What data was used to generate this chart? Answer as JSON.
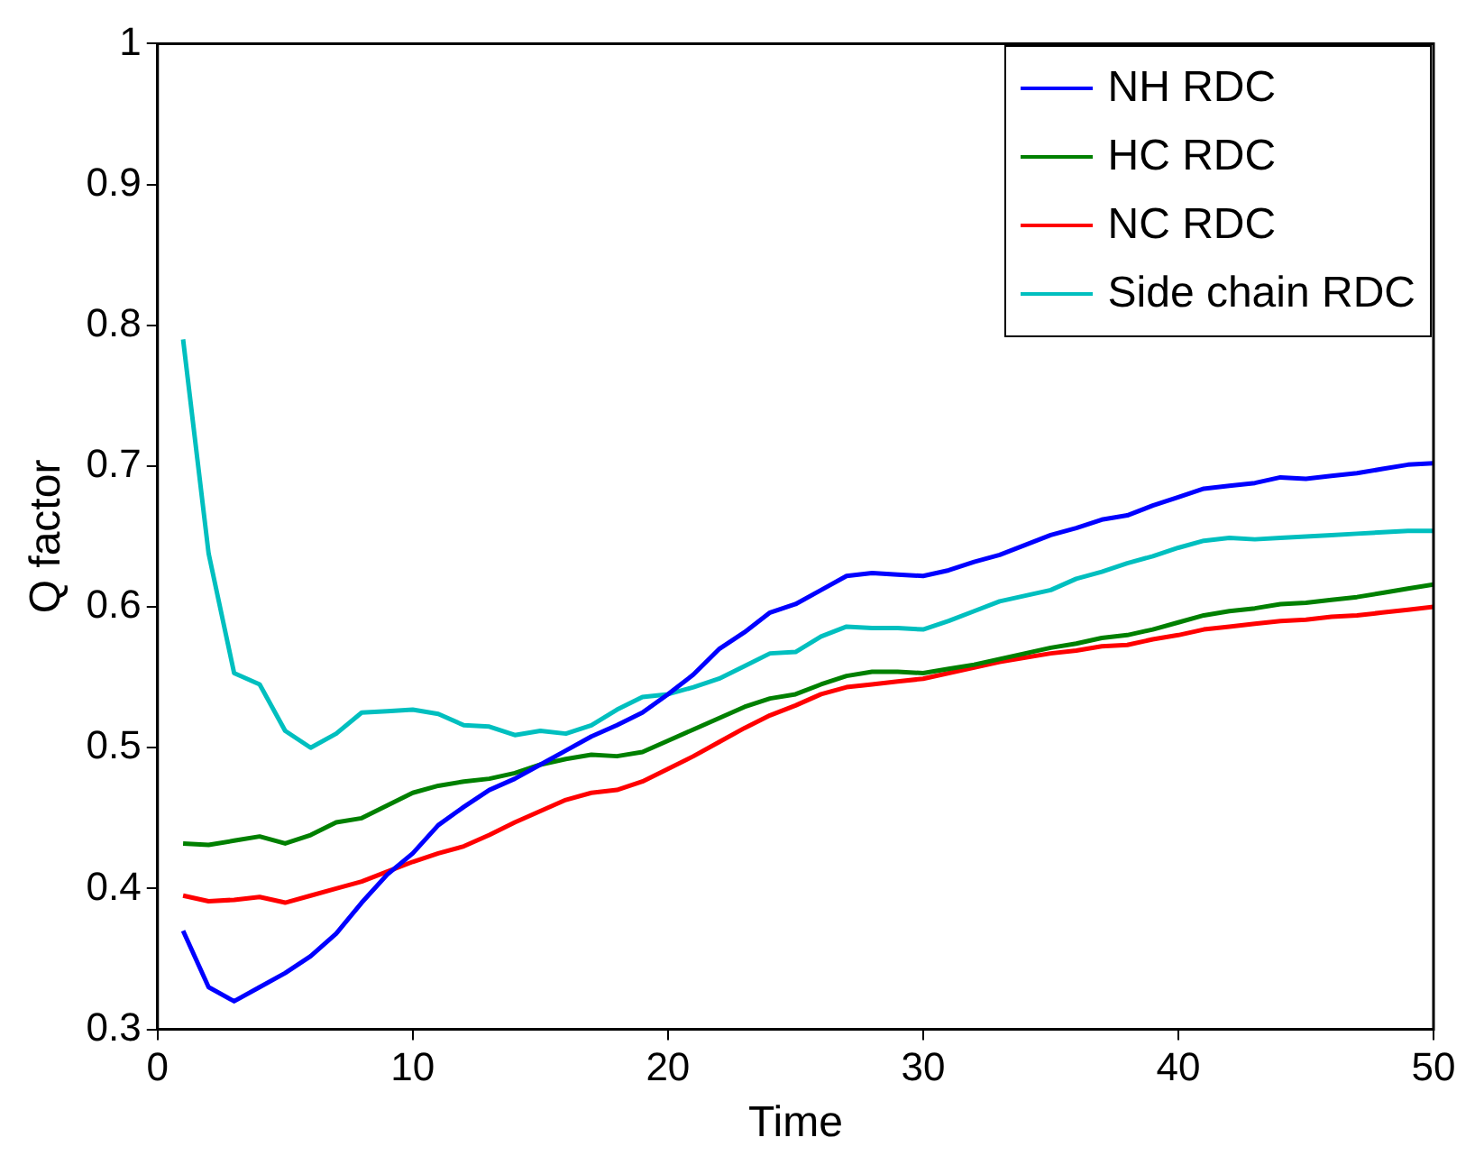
{
  "chart_data": {
    "type": "line",
    "xlabel": "Time",
    "ylabel": "Q factor",
    "x": [
      1,
      2,
      3,
      4,
      5,
      6,
      7,
      8,
      9,
      10,
      11,
      12,
      13,
      14,
      15,
      16,
      17,
      18,
      19,
      20,
      21,
      22,
      23,
      24,
      25,
      26,
      27,
      28,
      29,
      30,
      31,
      32,
      33,
      34,
      35,
      36,
      37,
      38,
      39,
      40,
      41,
      42,
      43,
      44,
      45,
      46,
      47,
      48,
      49,
      50
    ],
    "xlim": [
      0,
      50
    ],
    "xticks": [
      0,
      10,
      20,
      30,
      40,
      50
    ],
    "ylim": [
      0.3,
      1
    ],
    "yticks": [
      0.3,
      0.4,
      0.5,
      0.6,
      0.7,
      0.8,
      0.9,
      1
    ],
    "grid": false,
    "legend": "top right",
    "marker": "none",
    "line_style": "solid",
    "series": [
      {
        "name": "NH RDC",
        "color": "#0000ff",
        "values": [
          0.37,
          0.33,
          0.32,
          0.33,
          0.34,
          0.352,
          0.368,
          0.39,
          0.41,
          0.425,
          0.445,
          0.458,
          0.47,
          0.478,
          0.488,
          0.498,
          0.508,
          0.516,
          0.525,
          0.538,
          0.552,
          0.57,
          0.582,
          0.596,
          0.602,
          0.612,
          0.622,
          0.624,
          0.623,
          0.622,
          0.626,
          0.632,
          0.637,
          0.644,
          0.651,
          0.656,
          0.662,
          0.665,
          0.672,
          0.678,
          0.684,
          0.686,
          0.688,
          0.692,
          0.691,
          0.693,
          0.695,
          0.698,
          0.701,
          0.702
        ]
      },
      {
        "name": "HC RDC",
        "color": "#008000",
        "values": [
          0.432,
          0.431,
          0.434,
          0.437,
          0.432,
          0.438,
          0.447,
          0.45,
          0.459,
          0.468,
          0.473,
          0.476,
          0.478,
          0.482,
          0.488,
          0.492,
          0.495,
          0.494,
          0.497,
          0.505,
          0.513,
          0.521,
          0.529,
          0.535,
          0.538,
          0.545,
          0.551,
          0.554,
          0.554,
          0.553,
          0.556,
          0.559,
          0.563,
          0.567,
          0.571,
          0.574,
          0.578,
          0.58,
          0.584,
          0.589,
          0.594,
          0.597,
          0.599,
          0.602,
          0.603,
          0.605,
          0.607,
          0.61,
          0.613,
          0.616
        ]
      },
      {
        "name": "NC RDC",
        "color": "#ff0000",
        "values": [
          0.395,
          0.391,
          0.392,
          0.394,
          0.39,
          0.395,
          0.4,
          0.405,
          0.412,
          0.419,
          0.425,
          0.43,
          0.438,
          0.447,
          0.455,
          0.463,
          0.468,
          0.47,
          0.476,
          0.485,
          0.494,
          0.504,
          0.514,
          0.523,
          0.53,
          0.538,
          0.543,
          0.545,
          0.547,
          0.549,
          0.553,
          0.557,
          0.561,
          0.564,
          0.567,
          0.569,
          0.572,
          0.573,
          0.577,
          0.58,
          0.584,
          0.586,
          0.588,
          0.59,
          0.591,
          0.593,
          0.594,
          0.596,
          0.598,
          0.6
        ]
      },
      {
        "name": "Side chain RDC",
        "color": "#00bfbf",
        "values": [
          0.79,
          0.638,
          0.553,
          0.545,
          0.512,
          0.5,
          0.51,
          0.525,
          0.526,
          0.527,
          0.524,
          0.516,
          0.515,
          0.509,
          0.512,
          0.51,
          0.516,
          0.527,
          0.536,
          0.538,
          0.543,
          0.549,
          0.558,
          0.567,
          0.568,
          0.579,
          0.586,
          0.585,
          0.585,
          0.584,
          0.59,
          0.597,
          0.604,
          0.608,
          0.612,
          0.62,
          0.625,
          0.631,
          0.636,
          0.642,
          0.647,
          0.649,
          0.648,
          0.649,
          0.65,
          0.651,
          0.652,
          0.653,
          0.654,
          0.654
        ]
      }
    ]
  }
}
